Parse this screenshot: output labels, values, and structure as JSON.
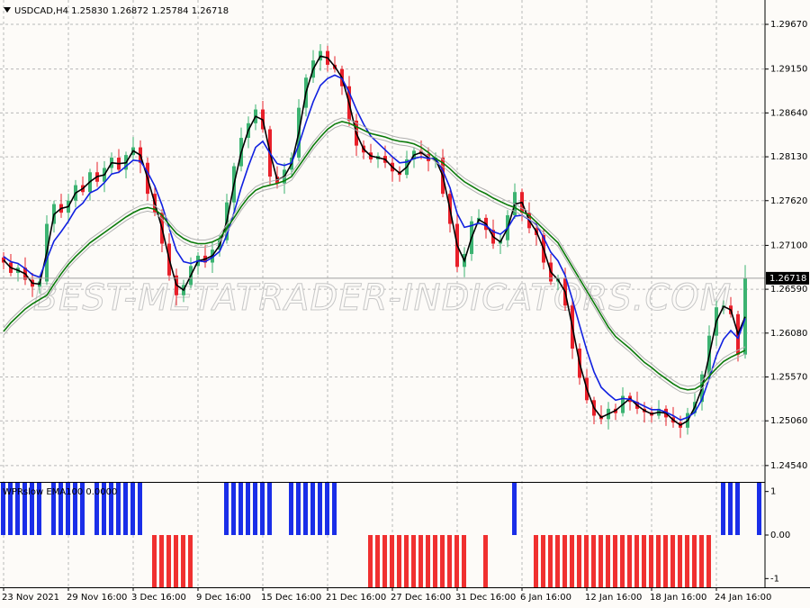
{
  "watermark": "BEST-METATRADER-INDICATORS.COM",
  "chart_data": [
    {
      "type": "candlestick",
      "title": "USDCAD,H4  1.25830 1.26872 1.25784 1.26718",
      "categories": [
        "23 Nov 2021",
        null,
        null,
        null,
        null,
        null,
        null,
        null,
        null,
        "29 Nov 16:00",
        null,
        null,
        null,
        null,
        null,
        null,
        null,
        null,
        "3 Dec 16:00",
        null,
        null,
        null,
        null,
        null,
        null,
        null,
        null,
        "9 Dec 16:00",
        null,
        null,
        null,
        null,
        null,
        null,
        null,
        null,
        "15 Dec 16:00",
        null,
        null,
        null,
        null,
        null,
        null,
        null,
        null,
        "21 Dec 16:00",
        null,
        null,
        null,
        null,
        null,
        null,
        null,
        null,
        "27 Dec 16:00",
        null,
        null,
        null,
        null,
        null,
        null,
        null,
        null,
        "31 Dec 16:00",
        null,
        null,
        null,
        null,
        null,
        null,
        null,
        null,
        "6 Jan 16:00",
        null,
        null,
        null,
        null,
        null,
        null,
        null,
        null,
        "12 Jan 16:00",
        null,
        null,
        null,
        null,
        null,
        null,
        null,
        null,
        "18 Jan 16:00",
        null,
        null,
        null,
        null,
        null,
        null,
        null,
        null,
        "24 Jan 16:00",
        null,
        null,
        null,
        null
      ],
      "open": [
        1.2696,
        1.269,
        1.2678,
        1.2684,
        1.267,
        1.2662,
        1.2668,
        1.2735,
        1.2758,
        1.2748,
        1.2762,
        1.278,
        1.2772,
        1.2795,
        1.2784,
        1.28,
        1.2812,
        1.2798,
        1.2815,
        1.2824,
        1.2806,
        1.277,
        1.2748,
        1.2712,
        1.2675,
        1.2652,
        1.2664,
        1.2686,
        1.2698,
        1.269,
        1.2705,
        1.2716,
        1.276,
        1.2802,
        1.2835,
        1.2852,
        1.2868,
        1.2845,
        1.279,
        1.2782,
        1.2798,
        1.2812,
        1.287,
        1.2905,
        1.2925,
        1.2936,
        1.292,
        1.2915,
        1.2895,
        1.2855,
        1.2826,
        1.2818,
        1.281,
        1.2814,
        1.2806,
        1.2796,
        1.2792,
        1.281,
        1.282,
        1.2816,
        1.2808,
        1.2812,
        1.277,
        1.2735,
        1.2685,
        1.27,
        1.2738,
        1.2742,
        1.2728,
        1.2712,
        1.2716,
        1.2745,
        1.2772,
        1.2748,
        1.273,
        1.2722,
        1.269,
        1.2668,
        1.2672,
        1.264,
        1.259,
        1.2556,
        1.253,
        1.2512,
        1.2508,
        1.252,
        1.2515,
        1.2535,
        1.2528,
        1.252,
        1.2516,
        1.2512,
        1.252,
        1.251,
        1.2504,
        1.2498,
        1.2515,
        1.2528,
        1.256,
        1.2605,
        1.2638,
        1.264,
        1.263,
        1.2583
      ],
      "high": [
        1.2702,
        1.27,
        1.2688,
        1.2696,
        1.2678,
        1.2674,
        1.2745,
        1.2762,
        1.277,
        1.277,
        1.2786,
        1.279,
        1.2799,
        1.2807,
        1.2808,
        1.2818,
        1.2822,
        1.2819,
        1.2836,
        1.2832,
        1.2812,
        1.278,
        1.2752,
        1.2724,
        1.2683,
        1.267,
        1.2696,
        1.2702,
        1.271,
        1.2713,
        1.2722,
        1.277,
        1.2806,
        1.2847,
        1.286,
        1.2874,
        1.2878,
        1.2849,
        1.2802,
        1.2806,
        1.2818,
        1.288,
        1.2909,
        1.2937,
        1.2944,
        1.2942,
        1.293,
        1.2919,
        1.2907,
        1.2863,
        1.2832,
        1.2828,
        1.2818,
        1.2826,
        1.2814,
        1.2802,
        1.282,
        1.2824,
        1.2832,
        1.2824,
        1.2818,
        1.2822,
        1.2774,
        1.2747,
        1.2708,
        1.2744,
        1.2752,
        1.2746,
        1.274,
        1.2724,
        1.2751,
        1.2782,
        1.2776,
        1.276,
        1.2738,
        1.2728,
        1.27,
        1.2676,
        1.2684,
        1.2648,
        1.2596,
        1.2566,
        1.2534,
        1.2524,
        1.2528,
        1.2526,
        1.2545,
        1.2539,
        1.254,
        1.2528,
        1.2522,
        1.253,
        1.2524,
        1.2522,
        1.2512,
        1.2521,
        1.2538,
        1.2564,
        1.2617,
        1.2646,
        1.2646,
        1.265,
        1.2634,
        1.26872
      ],
      "low": [
        1.2682,
        1.2674,
        1.2668,
        1.2664,
        1.265,
        1.2654,
        1.2664,
        1.2725,
        1.2742,
        1.2736,
        1.2754,
        1.2768,
        1.2762,
        1.2778,
        1.2772,
        1.2792,
        1.2794,
        1.2788,
        1.2809,
        1.2794,
        1.2762,
        1.2744,
        1.2702,
        1.2669,
        1.264,
        1.2644,
        1.266,
        1.2676,
        1.2684,
        1.2678,
        1.2697,
        1.2712,
        1.275,
        1.2796,
        1.2823,
        1.2844,
        1.2841,
        1.278,
        1.2776,
        1.277,
        1.279,
        1.2808,
        1.286,
        1.2899,
        1.2913,
        1.2912,
        1.2911,
        1.2885,
        1.2849,
        1.2814,
        1.281,
        1.2806,
        1.28,
        1.28,
        1.2784,
        1.2784,
        1.2788,
        1.28,
        1.281,
        1.2796,
        1.28,
        1.2766,
        1.2725,
        1.2679,
        1.2673,
        1.2692,
        1.2734,
        1.2718,
        1.2706,
        1.27,
        1.2708,
        1.2741,
        1.2738,
        1.2724,
        1.271,
        1.2682,
        1.2664,
        1.2658,
        1.2634,
        1.2578,
        1.2548,
        1.2526,
        1.2502,
        1.2502,
        1.2496,
        1.2507,
        1.2511,
        1.2518,
        1.2514,
        1.2504,
        1.2504,
        1.2508,
        1.25,
        1.2498,
        1.2486,
        1.249,
        1.2511,
        1.2518,
        1.2554,
        1.2593,
        1.263,
        1.2626,
        1.2575,
        1.25784
      ],
      "close": [
        1.269,
        1.2678,
        1.2684,
        1.267,
        1.2662,
        1.2668,
        1.2735,
        1.2758,
        1.2748,
        1.2762,
        1.278,
        1.2772,
        1.2795,
        1.2784,
        1.28,
        1.2812,
        1.2798,
        1.2815,
        1.2824,
        1.2806,
        1.277,
        1.2748,
        1.2712,
        1.2675,
        1.2652,
        1.2664,
        1.2686,
        1.2698,
        1.269,
        1.2705,
        1.2716,
        1.276,
        1.2802,
        1.2835,
        1.2852,
        1.2868,
        1.2845,
        1.279,
        1.2782,
        1.2798,
        1.2812,
        1.287,
        1.2905,
        1.2925,
        1.2936,
        1.292,
        1.2915,
        1.2895,
        1.2855,
        1.2826,
        1.2818,
        1.281,
        1.2814,
        1.2806,
        1.2796,
        1.2792,
        1.281,
        1.282,
        1.2816,
        1.2808,
        1.2812,
        1.277,
        1.2735,
        1.2685,
        1.27,
        1.2738,
        1.2742,
        1.2728,
        1.2712,
        1.2716,
        1.2745,
        1.2772,
        1.2748,
        1.273,
        1.2722,
        1.269,
        1.2668,
        1.2672,
        1.264,
        1.259,
        1.2556,
        1.253,
        1.2512,
        1.2508,
        1.252,
        1.2515,
        1.2535,
        1.2528,
        1.252,
        1.2516,
        1.2512,
        1.252,
        1.251,
        1.2504,
        1.2498,
        1.2515,
        1.2528,
        1.256,
        1.2605,
        1.2638,
        1.264,
        1.263,
        1.2583,
        1.26718
      ],
      "up_color": "#3cb371",
      "down_color": "#e8202a",
      "series": [
        {
          "color": "#000000",
          "values": [
            1.2693,
            1.2684,
            1.2681,
            1.2677,
            1.2666,
            1.2665,
            1.2702,
            1.2746,
            1.2753,
            1.2755,
            1.2771,
            1.2776,
            1.2784,
            1.279,
            1.2792,
            1.2806,
            1.2805,
            1.2806,
            1.282,
            1.2815,
            1.2788,
            1.2759,
            1.273,
            1.2694,
            1.2664,
            1.2658,
            1.2675,
            1.2692,
            1.2694,
            1.2698,
            1.271,
            1.2738,
            1.2781,
            1.2818,
            1.2844,
            1.286,
            1.2856,
            1.2818,
            1.2786,
            1.279,
            1.2805,
            1.2841,
            1.2888,
            1.2915,
            1.293,
            1.2928,
            1.2918,
            1.2905,
            1.2875,
            1.284,
            1.2822,
            1.2814,
            1.2812,
            1.281,
            1.2801,
            1.2794,
            1.2801,
            1.2815,
            1.2818,
            1.2812,
            1.281,
            1.2791,
            1.2752,
            1.271,
            1.2692,
            1.2719,
            1.274,
            1.2735,
            1.272,
            1.2714,
            1.273,
            1.2758,
            1.276,
            1.2739,
            1.2726,
            1.2706,
            1.2679,
            1.267,
            1.2656,
            1.2615,
            1.2573,
            1.2543,
            1.2521,
            1.251,
            1.2514,
            1.2518,
            1.2525,
            1.2532,
            1.2524,
            1.2518,
            1.2514,
            1.2516,
            1.2515,
            1.2507,
            1.2501,
            1.2506,
            1.2522,
            1.2544,
            1.2582,
            1.2622,
            1.2639,
            1.2635,
            1.2607,
            1.2627
          ]
        },
        {
          "color": "#1020e0",
          "values": [
            1.2697,
            1.2691,
            1.2689,
            1.2683,
            1.2676,
            1.2673,
            1.2694,
            1.2715,
            1.2726,
            1.2738,
            1.2752,
            1.2759,
            1.2771,
            1.2775,
            1.2783,
            1.2793,
            1.2795,
            1.2802,
            1.2809,
            1.2808,
            1.2795,
            1.2779,
            1.2757,
            1.273,
            1.2704,
            1.2691,
            1.2689,
            1.2692,
            1.2691,
            1.2696,
            1.2703,
            1.2722,
            1.2748,
            1.2777,
            1.2802,
            1.2824,
            1.2831,
            1.2817,
            1.2805,
            1.2803,
            1.2806,
            1.2827,
            1.2853,
            1.2877,
            1.2896,
            1.2904,
            1.2908,
            1.2904,
            1.2888,
            1.2868,
            1.2851,
            1.2837,
            1.2829,
            1.2821,
            1.2813,
            1.2806,
            1.2807,
            1.2811,
            1.2813,
            1.2811,
            1.2811,
            1.2797,
            1.2777,
            1.2747,
            1.2731,
            1.2733,
            1.2736,
            1.2733,
            1.2726,
            1.2723,
            1.273,
            1.2744,
            1.2745,
            1.274,
            1.2734,
            1.2719,
            1.2702,
            1.2692,
            1.2675,
            1.2647,
            1.2617,
            1.2588,
            1.2563,
            1.2545,
            1.2537,
            1.253,
            1.2532,
            1.2531,
            1.2527,
            1.2523,
            1.2519,
            1.2519,
            1.2516,
            1.2512,
            1.2507,
            1.251,
            1.2516,
            1.2531,
            1.2555,
            1.2582,
            1.2601,
            1.2611,
            1.2602,
            1.2625
          ]
        },
        {
          "color": "#0a7a0a",
          "values": [
            1.261,
            1.262,
            1.2628,
            1.2636,
            1.2642,
            1.2647,
            1.2652,
            1.2665,
            1.2677,
            1.2688,
            1.2697,
            1.2705,
            1.2713,
            1.2719,
            1.2725,
            1.2731,
            1.2737,
            1.2743,
            1.2748,
            1.2752,
            1.2754,
            1.2752,
            1.2745,
            1.2734,
            1.2724,
            1.2718,
            1.2714,
            1.2712,
            1.2712,
            1.2714,
            1.2718,
            1.273,
            1.2742,
            1.2755,
            1.2766,
            1.2774,
            1.2778,
            1.278,
            1.2782,
            1.2785,
            1.279,
            1.2802,
            1.2814,
            1.2826,
            1.2836,
            1.2845,
            1.2851,
            1.2854,
            1.2852,
            1.2848,
            1.2844,
            1.284,
            1.2838,
            1.2836,
            1.2833,
            1.2831,
            1.283,
            1.2828,
            1.2824,
            1.2818,
            1.2811,
            1.2806,
            1.2799,
            1.2791,
            1.2784,
            1.2779,
            1.2774,
            1.277,
            1.2765,
            1.2761,
            1.2757,
            1.2754,
            1.2749,
            1.2745,
            1.2737,
            1.2729,
            1.2721,
            1.2713,
            1.2699,
            1.2685,
            1.2671,
            1.2657,
            1.2643,
            1.2629,
            1.2615,
            1.2604,
            1.2597,
            1.259,
            1.2582,
            1.2574,
            1.2568,
            1.2561,
            1.2555,
            1.2549,
            1.2544,
            1.2542,
            1.2543,
            1.2548,
            1.2558,
            1.2567,
            1.2575,
            1.258,
            1.2584,
            1.2588
          ]
        }
      ],
      "current_price": {
        "value": 1.26718,
        "label": "1.26718"
      },
      "ylim": [
        1.2435,
        1.29953
      ],
      "yticks": [
        {
          "value": 1.2967,
          "label": "1.29670"
        },
        {
          "value": 1.2915,
          "label": "1.29150"
        },
        {
          "value": 1.2864,
          "label": "1.28640"
        },
        {
          "value": 1.2813,
          "label": "1.28130"
        },
        {
          "value": 1.2762,
          "label": "1.27620"
        },
        {
          "value": 1.271,
          "label": "1.27100"
        },
        {
          "value": 1.2659,
          "label": "1.26590"
        },
        {
          "value": 1.2608,
          "label": "1.26080"
        },
        {
          "value": 1.2557,
          "label": "1.25570"
        },
        {
          "value": 1.2506,
          "label": "1.25060"
        },
        {
          "value": 1.2454,
          "label": "1.24540"
        }
      ],
      "grid": true
    },
    {
      "type": "bar",
      "title": "WPRslow EMA100 0.0000",
      "values": [
        1.2,
        1.2,
        1.2,
        1.2,
        1.2,
        1.2,
        0,
        1.2,
        1.2,
        1.2,
        1.2,
        1.2,
        0,
        1.2,
        1.2,
        1.2,
        1.2,
        1.2,
        1.2,
        1.2,
        0,
        -1.2,
        -1.2,
        -1.2,
        -1.2,
        -1.2,
        -1.2,
        0,
        0,
        0,
        0,
        1.2,
        1.2,
        1.2,
        1.2,
        1.2,
        1.2,
        1.2,
        0,
        0,
        1.2,
        1.2,
        1.2,
        1.2,
        1.2,
        1.2,
        1.2,
        0,
        0,
        0,
        0,
        -1.2,
        -1.2,
        -1.2,
        -1.2,
        -1.2,
        -1.2,
        -1.2,
        -1.2,
        -1.2,
        -1.2,
        -1.2,
        -1.2,
        -1.2,
        -1.2,
        0,
        0,
        -1.2,
        0,
        0,
        0,
        1.2,
        0,
        0,
        -1.2,
        -1.2,
        -1.2,
        -1.2,
        -1.2,
        -1.2,
        -1.2,
        -1.2,
        -1.2,
        -1.2,
        -1.2,
        -1.2,
        -1.2,
        -1.2,
        -1.2,
        -1.2,
        -1.2,
        -1.2,
        -1.2,
        -1.2,
        -1.2,
        -1.2,
        -1.2,
        -1.2,
        -1.2,
        0,
        1.2,
        1.2,
        1.2,
        0,
        0,
        1.2
      ],
      "up_color": "#1a2ee8",
      "down_color": "#f03030",
      "ylim": [
        -1.2,
        1.2
      ],
      "yticks": [
        1,
        {
          "value": 0,
          "label": "0.00"
        },
        -1
      ]
    }
  ]
}
